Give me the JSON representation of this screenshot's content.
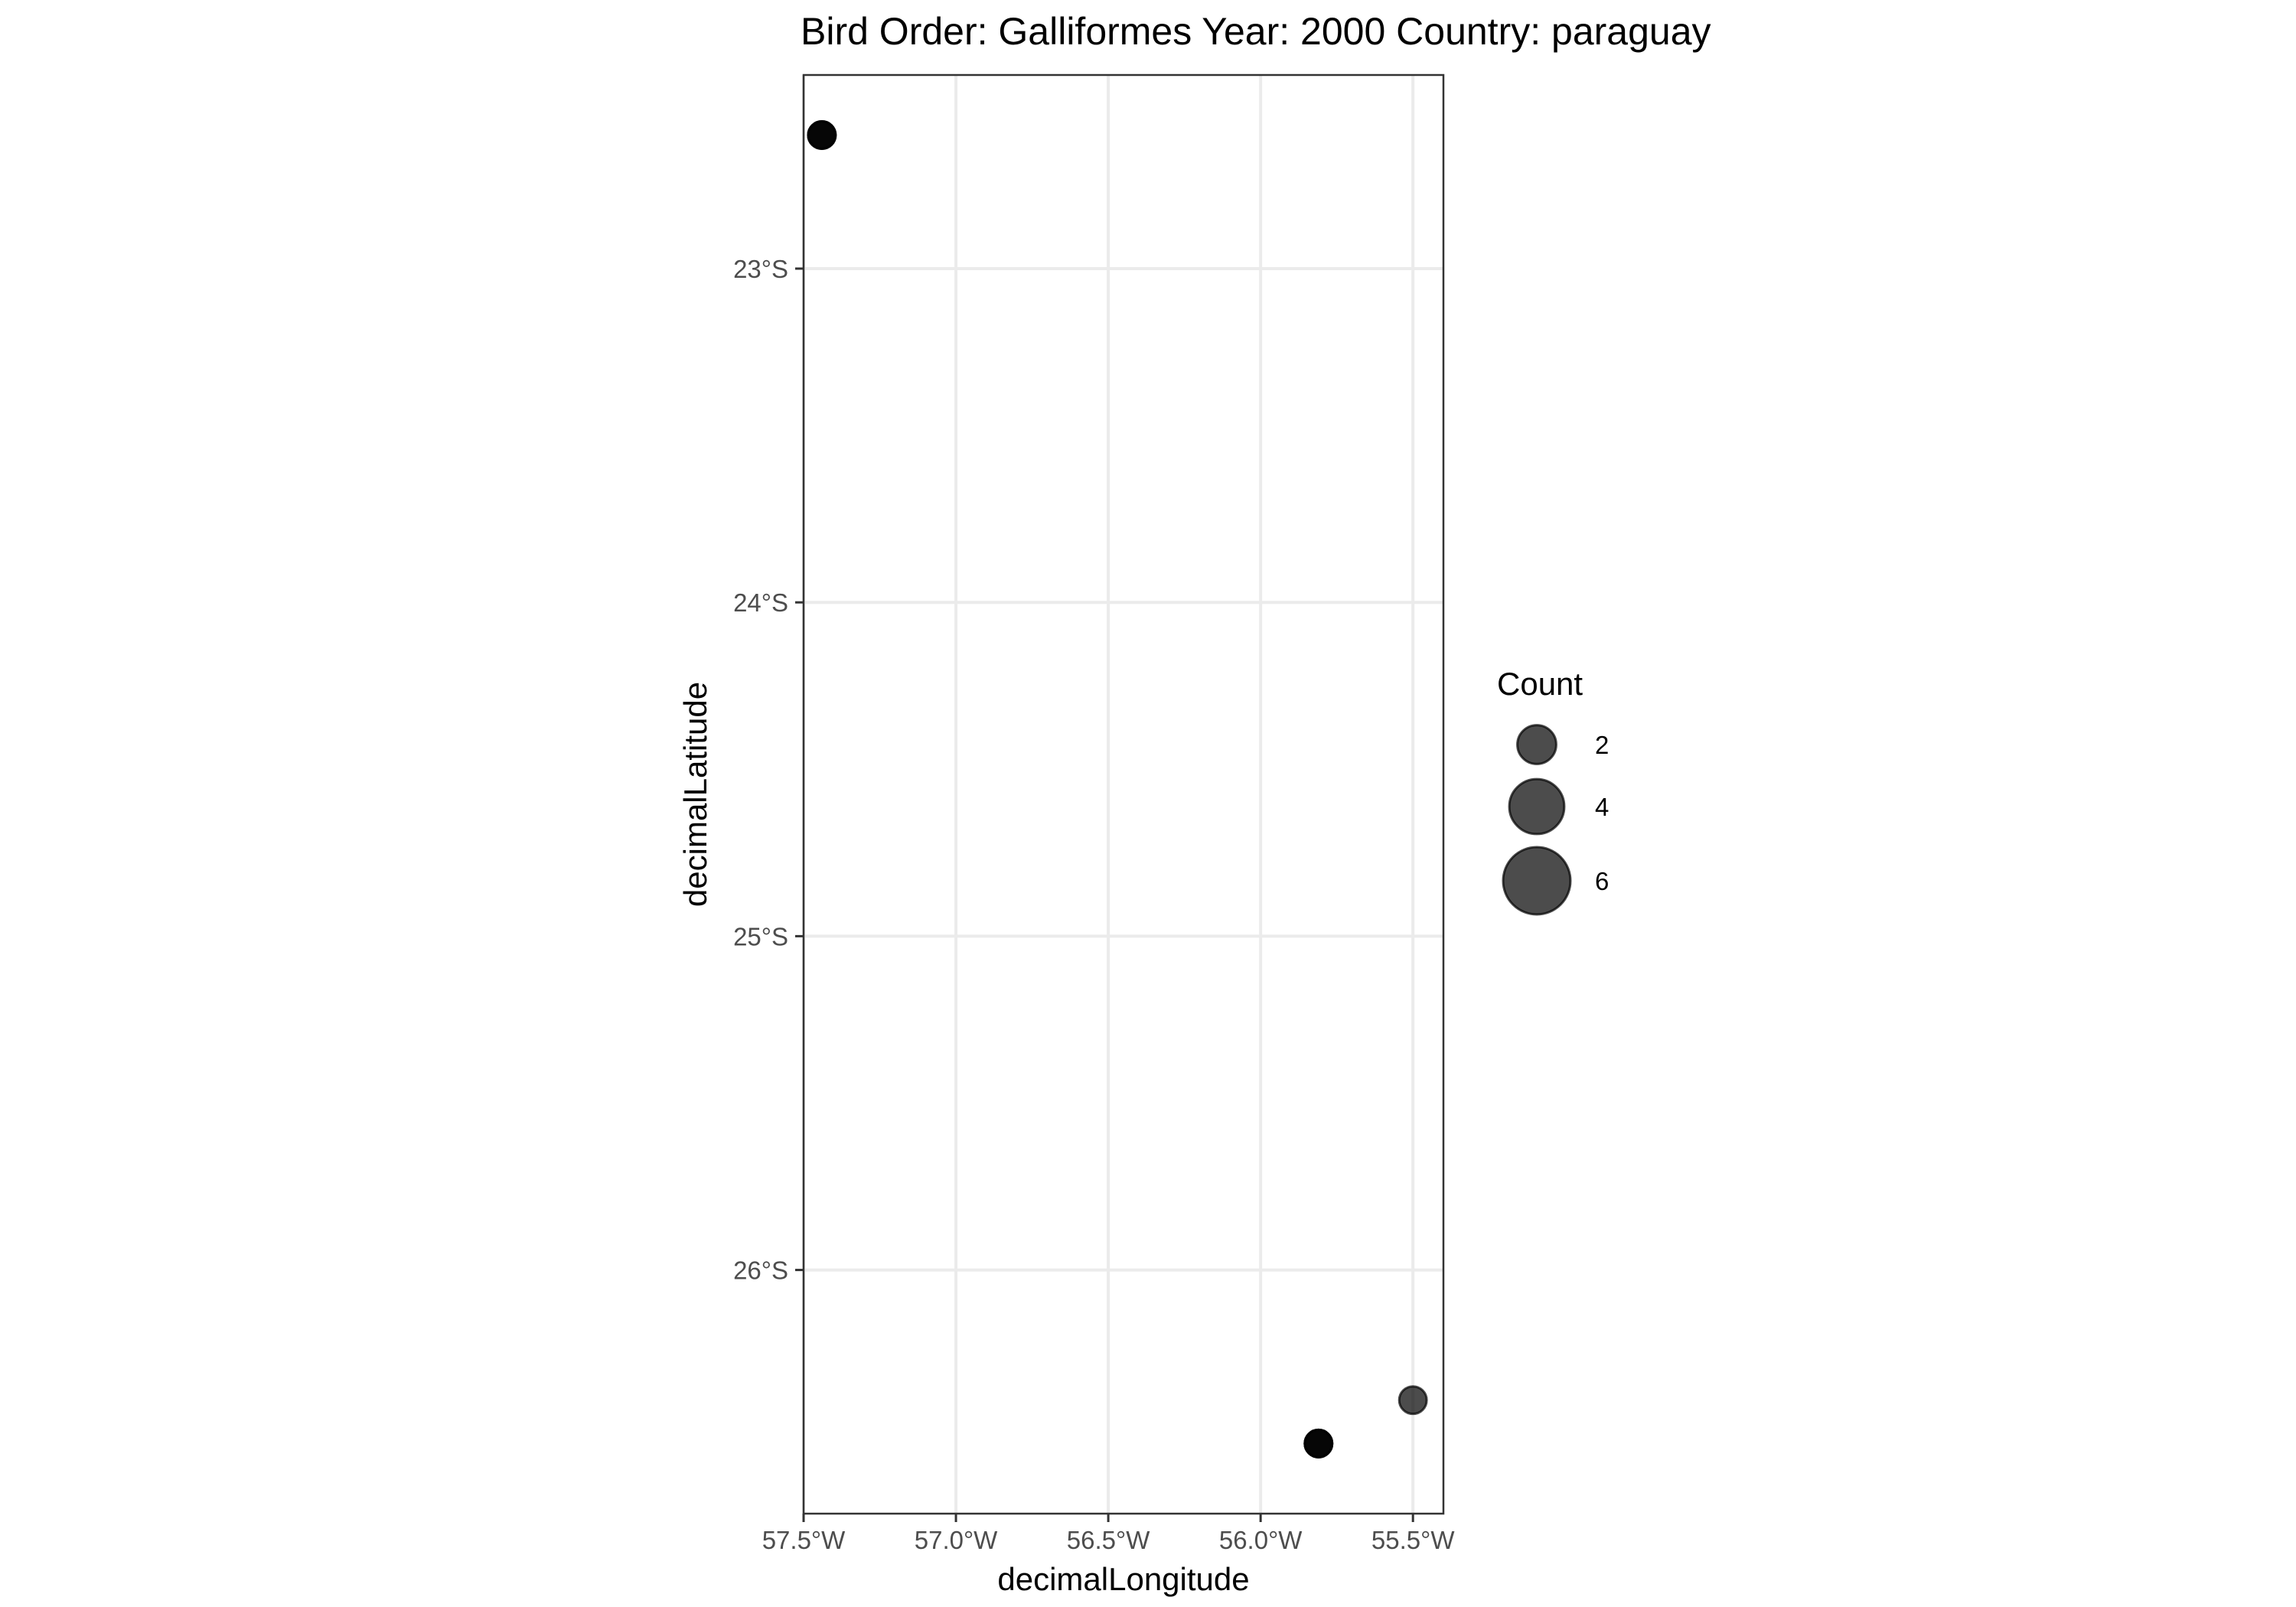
{
  "chart_data": {
    "type": "scatter",
    "title": "Bird Order: Galliformes Year: 2000 Country: paraguay",
    "xlabel": "decimalLongitude",
    "ylabel": "decimalLatitude",
    "xlim": [
      -57.5,
      -55.4
    ],
    "ylim": [
      -26.73,
      -22.42
    ],
    "x_ticks": [
      {
        "value": -57.5,
        "label": "57.5°W"
      },
      {
        "value": -57.0,
        "label": "57.0°W"
      },
      {
        "value": -56.5,
        "label": "56.5°W"
      },
      {
        "value": -56.0,
        "label": "56.0°W"
      },
      {
        "value": -55.5,
        "label": "55.5°W"
      }
    ],
    "y_ticks": [
      {
        "value": -23,
        "label": "23°S"
      },
      {
        "value": -24,
        "label": "24°S"
      },
      {
        "value": -25,
        "label": "25°S"
      },
      {
        "value": -26,
        "label": "26°S"
      }
    ],
    "grid": true,
    "point_color": "#000000",
    "points": [
      {
        "x": -57.44,
        "y": -22.6,
        "count": 1
      },
      {
        "x": -57.44,
        "y": -22.6,
        "count": 1
      },
      {
        "x": -57.44,
        "y": -22.6,
        "count": 1
      },
      {
        "x": -55.81,
        "y": -26.52,
        "count": 1
      },
      {
        "x": -55.81,
        "y": -26.52,
        "count": 1
      },
      {
        "x": -55.81,
        "y": -26.52,
        "count": 1
      },
      {
        "x": -55.5,
        "y": -26.39,
        "count": 1
      }
    ],
    "legend": {
      "title": "Count",
      "placement": "right",
      "entries": [
        {
          "value": 2,
          "label": "2"
        },
        {
          "value": 4,
          "label": "4"
        },
        {
          "value": 6,
          "label": "6"
        }
      ]
    }
  }
}
